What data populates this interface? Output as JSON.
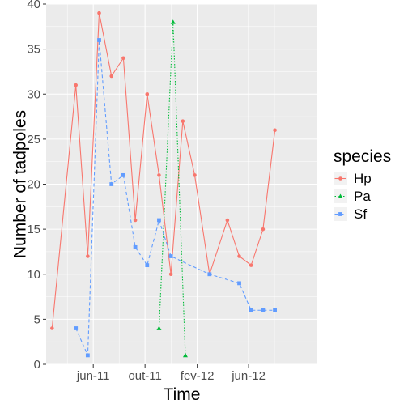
{
  "chart_data": {
    "type": "line",
    "xlabel": "Time",
    "ylabel": "Number of tadpoles",
    "ylim": [
      0,
      40
    ],
    "yticks": [
      0,
      5,
      10,
      15,
      20,
      25,
      30,
      35,
      40
    ],
    "xlim": [
      "2011-02-10",
      "2012-11-10"
    ],
    "xticks": [
      {
        "label": "jun-11",
        "date": "2011-06-01"
      },
      {
        "label": "out-11",
        "date": "2011-10-01"
      },
      {
        "label": "fev-12",
        "date": "2012-02-01"
      },
      {
        "label": "jun-12",
        "date": "2012-06-01"
      }
    ],
    "grid": true,
    "legend": {
      "title": "species",
      "position": "right"
    },
    "series": [
      {
        "name": "Hp",
        "color": "#F8766D",
        "marker": "circle",
        "line": "solid",
        "points": [
          {
            "x": "2011-02-24",
            "y": 4
          },
          {
            "x": "2011-04-21",
            "y": 31
          },
          {
            "x": "2011-05-19",
            "y": 12
          },
          {
            "x": "2011-06-15",
            "y": 39
          },
          {
            "x": "2011-07-14",
            "y": 32
          },
          {
            "x": "2011-08-11",
            "y": 34
          },
          {
            "x": "2011-09-08",
            "y": 16
          },
          {
            "x": "2011-10-06",
            "y": 30
          },
          {
            "x": "2011-11-03",
            "y": 21
          },
          {
            "x": "2011-12-01",
            "y": 10
          },
          {
            "x": "2011-12-29",
            "y": 27
          },
          {
            "x": "2012-01-26",
            "y": 21
          },
          {
            "x": "2012-03-01",
            "y": 10
          },
          {
            "x": "2012-04-12",
            "y": 16
          },
          {
            "x": "2012-05-10",
            "y": 12
          },
          {
            "x": "2012-06-07",
            "y": 11
          },
          {
            "x": "2012-07-05",
            "y": 15
          },
          {
            "x": "2012-08-02",
            "y": 26
          }
        ]
      },
      {
        "name": "Pa",
        "color": "#00BA38",
        "marker": "triangle",
        "line": "dotted",
        "points": [
          {
            "x": "2011-11-03",
            "y": 4
          },
          {
            "x": "2011-12-06",
            "y": 38
          },
          {
            "x": "2012-01-04",
            "y": 1
          }
        ]
      },
      {
        "name": "Sf",
        "color": "#619CFF",
        "marker": "square",
        "line": "dashed",
        "points": [
          {
            "x": "2011-04-21",
            "y": 4
          },
          {
            "x": "2011-05-19",
            "y": 1
          },
          {
            "x": "2011-06-15",
            "y": 36
          },
          {
            "x": "2011-07-14",
            "y": 20
          },
          {
            "x": "2011-08-11",
            "y": 21
          },
          {
            "x": "2011-09-08",
            "y": 13
          },
          {
            "x": "2011-10-06",
            "y": 11
          },
          {
            "x": "2011-11-03",
            "y": 16
          },
          {
            "x": "2011-12-01",
            "y": 12
          },
          {
            "x": "2012-03-01",
            "y": 10
          },
          {
            "x": "2012-05-10",
            "y": 9
          },
          {
            "x": "2012-06-07",
            "y": 6
          },
          {
            "x": "2012-07-05",
            "y": 6
          },
          {
            "x": "2012-08-02",
            "y": 6
          }
        ]
      }
    ]
  }
}
